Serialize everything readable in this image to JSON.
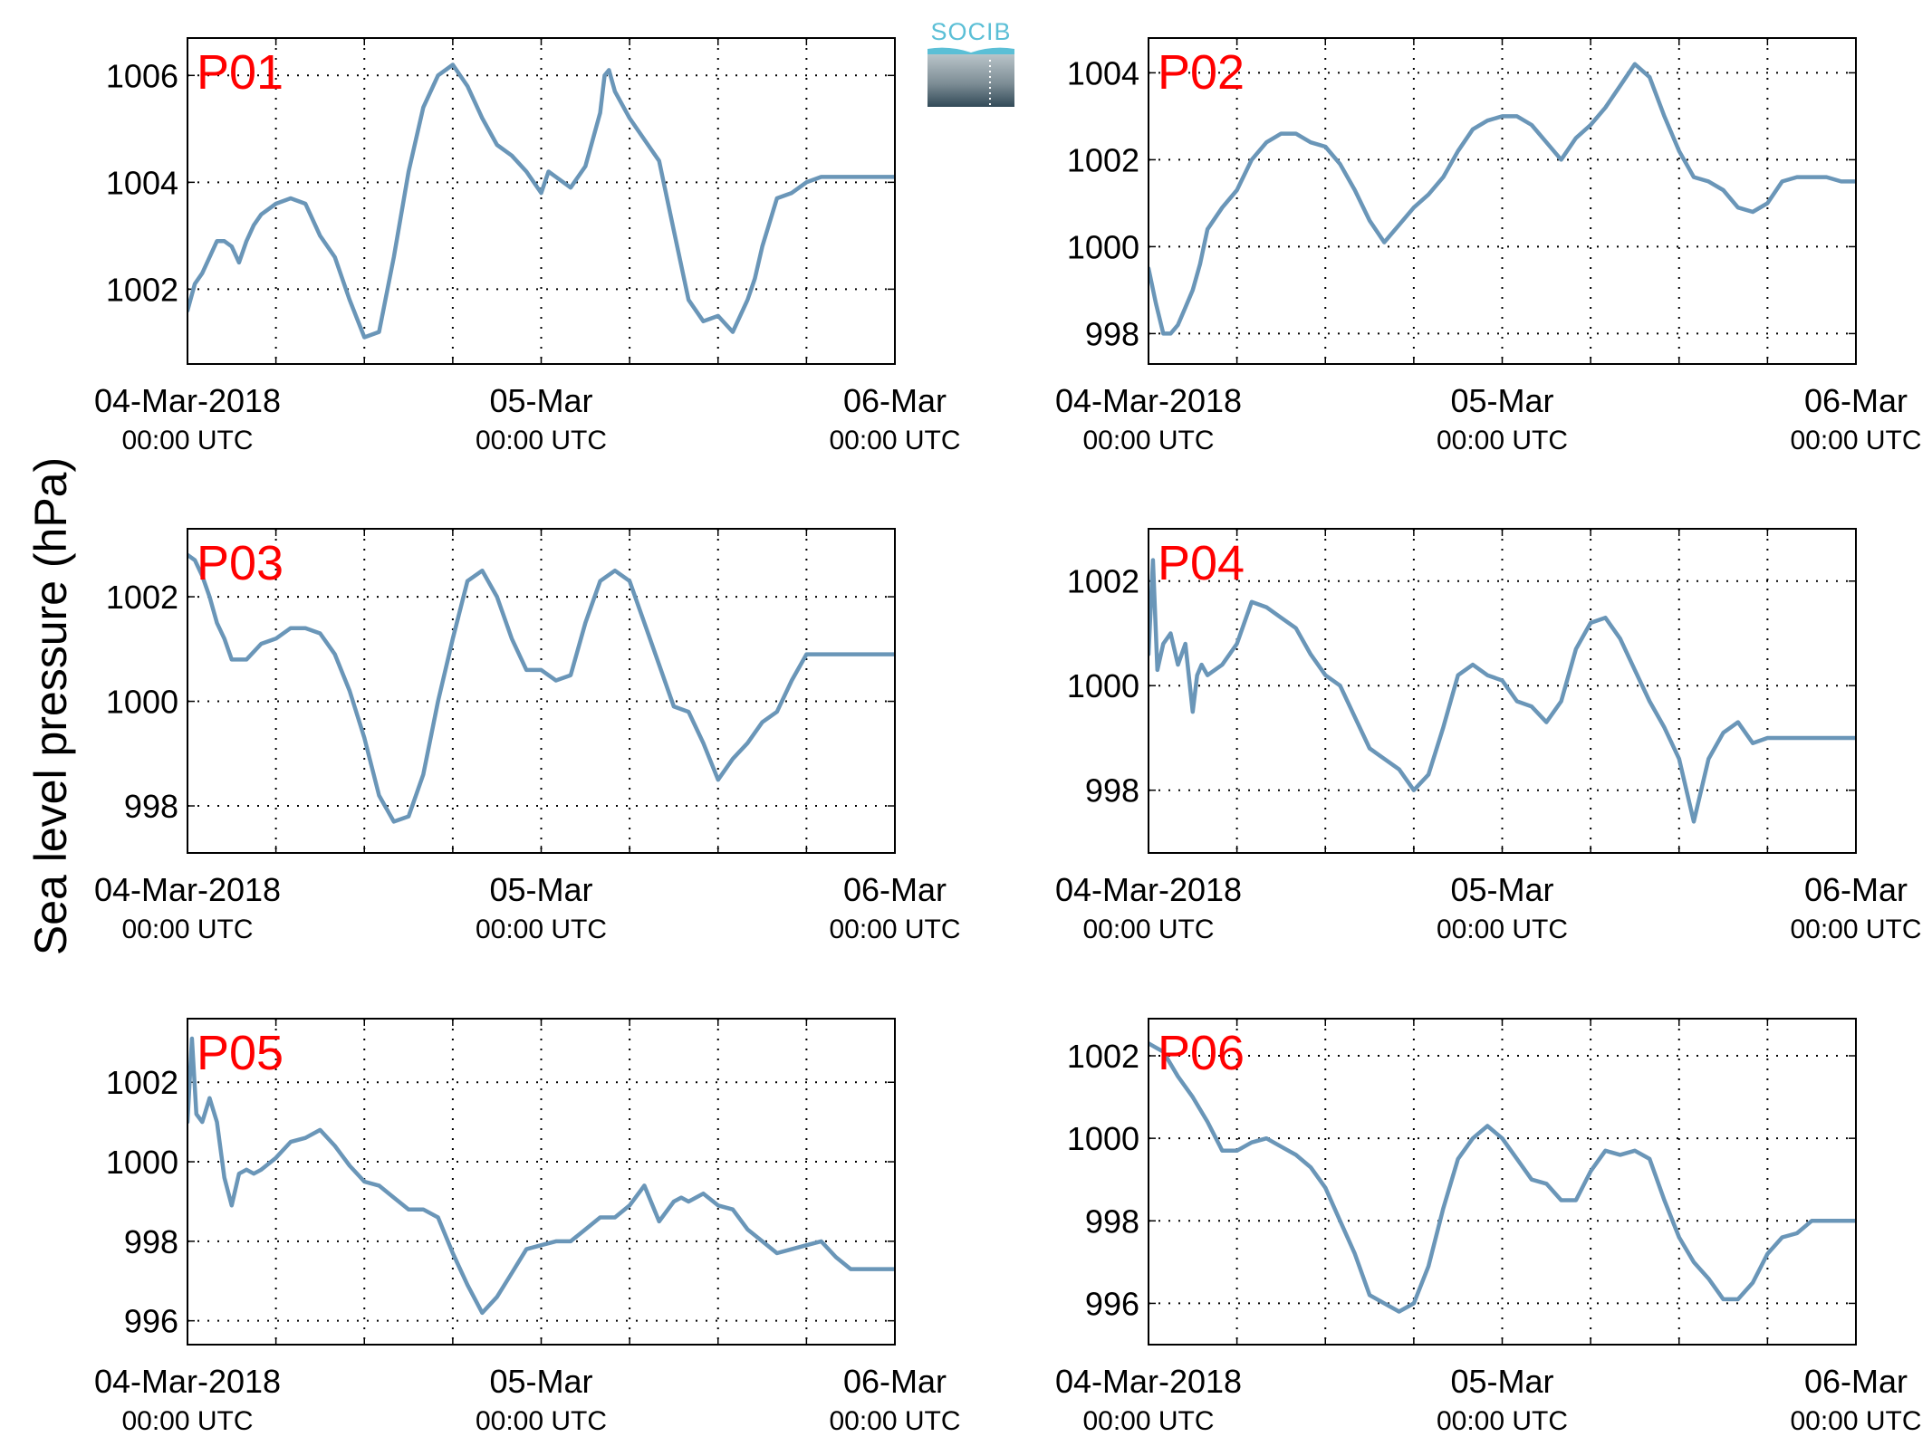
{
  "figure": {
    "ylabel": "Sea level pressure (hPa)",
    "logo_text": "SOCIB",
    "line_color": "#6a96b8",
    "label_color": "#ff0000"
  },
  "chart_data": [
    {
      "type": "line",
      "title": "P01",
      "xticks": [
        {
          "line1": "04-Mar-2018",
          "line2": "00:00 UTC"
        },
        {
          "line1": "05-Mar",
          "line2": "00:00 UTC"
        },
        {
          "line1": "06-Mar",
          "line2": "00:00 UTC"
        }
      ],
      "x_range_hours": [
        0,
        48
      ],
      "ylim": [
        1000.6,
        1006.7
      ],
      "yticks": [
        1002,
        1004,
        1006
      ],
      "x": [
        0,
        0.5,
        1,
        1.5,
        2,
        2.5,
        3,
        3.5,
        4,
        4.5,
        5,
        5.5,
        6,
        7,
        8,
        9,
        10,
        11,
        12,
        13,
        14,
        15,
        16,
        17,
        18,
        19,
        20,
        21,
        22,
        23,
        24,
        24.5,
        25,
        26,
        27,
        28,
        28.3,
        28.6,
        29,
        30,
        31,
        31.5,
        32,
        33,
        34,
        35,
        36,
        37,
        38,
        38.5,
        39,
        40,
        41,
        42,
        43,
        44,
        45,
        46,
        47,
        48
      ],
      "values": [
        1001.6,
        1002.1,
        1002.3,
        1002.6,
        1002.9,
        1002.9,
        1002.8,
        1002.5,
        1002.9,
        1003.2,
        1003.4,
        1003.5,
        1003.6,
        1003.7,
        1003.6,
        1003.0,
        1002.6,
        1001.8,
        1001.1,
        1001.2,
        1002.6,
        1004.2,
        1005.4,
        1006.0,
        1006.2,
        1005.8,
        1005.2,
        1004.7,
        1004.5,
        1004.2,
        1003.8,
        1004.2,
        1004.1,
        1003.9,
        1004.3,
        1005.3,
        1006.0,
        1006.1,
        1005.7,
        1005.2,
        1004.8,
        1004.6,
        1004.4,
        1003.1,
        1001.8,
        1001.4,
        1001.5,
        1001.2,
        1001.8,
        1002.2,
        1002.8,
        1003.7,
        1003.8,
        1004.0,
        1004.1,
        1004.1,
        1004.1,
        1004.1,
        1004.1,
        1004.1
      ]
    },
    {
      "type": "line",
      "title": "P02",
      "xticks": [
        {
          "line1": "04-Mar-2018",
          "line2": "00:00 UTC"
        },
        {
          "line1": "05-Mar",
          "line2": "00:00 UTC"
        },
        {
          "line1": "06-Mar",
          "line2": "00:00 UTC"
        }
      ],
      "x_range_hours": [
        0,
        48
      ],
      "ylim": [
        997.3,
        1004.8
      ],
      "yticks": [
        998,
        1000,
        1002,
        1004
      ],
      "x": [
        0,
        0.5,
        1,
        1.5,
        2,
        2.5,
        3,
        3.5,
        4,
        5,
        6,
        7,
        8,
        9,
        10,
        11,
        12,
        13,
        14,
        15,
        16,
        17,
        18,
        19,
        20,
        21,
        22,
        23,
        24,
        25,
        26,
        27,
        28,
        29,
        30,
        31,
        32,
        33,
        34,
        35,
        36,
        37,
        38,
        39,
        40,
        41,
        42,
        43,
        44,
        45,
        46,
        47,
        48
      ],
      "values": [
        999.5,
        998.7,
        998.0,
        998.0,
        998.2,
        998.6,
        999.0,
        999.6,
        1000.4,
        1000.9,
        1001.3,
        1002.0,
        1002.4,
        1002.6,
        1002.6,
        1002.4,
        1002.3,
        1001.9,
        1001.3,
        1000.6,
        1000.1,
        1000.5,
        1000.9,
        1001.2,
        1001.6,
        1002.2,
        1002.7,
        1002.9,
        1003.0,
        1003.0,
        1002.8,
        1002.4,
        1002.0,
        1002.5,
        1002.8,
        1003.2,
        1003.7,
        1004.2,
        1003.9,
        1003.0,
        1002.2,
        1001.6,
        1001.5,
        1001.3,
        1000.9,
        1000.8,
        1001.0,
        1001.5,
        1001.6,
        1001.6,
        1001.6,
        1001.5,
        1001.5
      ]
    },
    {
      "type": "line",
      "title": "P03",
      "xticks": [
        {
          "line1": "04-Mar-2018",
          "line2": "00:00 UTC"
        },
        {
          "line1": "05-Mar",
          "line2": "00:00 UTC"
        },
        {
          "line1": "06-Mar",
          "line2": "00:00 UTC"
        }
      ],
      "x_range_hours": [
        0,
        48
      ],
      "ylim": [
        997.1,
        1003.3
      ],
      "yticks": [
        998,
        1000,
        1002
      ],
      "x": [
        0,
        0.5,
        1,
        1.5,
        2,
        2.5,
        3,
        4,
        5,
        6,
        7,
        8,
        9,
        10,
        11,
        12,
        13,
        14,
        15,
        16,
        17,
        18,
        19,
        20,
        21,
        22,
        23,
        24,
        25,
        26,
        27,
        28,
        29,
        30,
        31,
        32,
        33,
        34,
        35,
        36,
        37,
        38,
        39,
        40,
        41,
        42,
        43,
        44,
        45,
        46,
        47,
        48
      ],
      "values": [
        1002.8,
        1002.7,
        1002.4,
        1002.0,
        1001.5,
        1001.2,
        1000.8,
        1000.8,
        1001.1,
        1001.2,
        1001.4,
        1001.4,
        1001.3,
        1000.9,
        1000.2,
        999.3,
        998.2,
        997.7,
        997.8,
        998.6,
        1000.0,
        1001.2,
        1002.3,
        1002.5,
        1002.0,
        1001.2,
        1000.6,
        1000.6,
        1000.4,
        1000.5,
        1001.5,
        1002.3,
        1002.5,
        1002.3,
        1001.5,
        1000.7,
        999.9,
        999.8,
        999.2,
        998.5,
        998.9,
        999.2,
        999.6,
        999.8,
        1000.4,
        1000.9,
        1000.9,
        1000.9,
        1000.9,
        1000.9,
        1000.9,
        1000.9
      ]
    },
    {
      "type": "line",
      "title": "P04",
      "xticks": [
        {
          "line1": "04-Mar-2018",
          "line2": "00:00 UTC"
        },
        {
          "line1": "05-Mar",
          "line2": "00:00 UTC"
        },
        {
          "line1": "06-Mar",
          "line2": "00:00 UTC"
        }
      ],
      "x_range_hours": [
        0,
        48
      ],
      "ylim": [
        996.8,
        1003.0
      ],
      "yticks": [
        998,
        1000,
        1002
      ],
      "x": [
        0,
        0.3,
        0.6,
        1,
        1.5,
        2,
        2.5,
        3,
        3.3,
        3.6,
        4,
        5,
        6,
        7,
        8,
        9,
        10,
        11,
        12,
        13,
        14,
        15,
        16,
        17,
        18,
        19,
        20,
        21,
        22,
        23,
        24,
        25,
        26,
        27,
        28,
        29,
        30,
        31,
        32,
        33,
        34,
        35,
        36,
        37,
        38,
        39,
        40,
        41,
        42,
        43,
        44,
        45,
        46,
        47,
        48
      ],
      "values": [
        1000.6,
        1002.4,
        1000.3,
        1000.8,
        1001.0,
        1000.4,
        1000.8,
        999.5,
        1000.2,
        1000.4,
        1000.2,
        1000.4,
        1000.8,
        1001.6,
        1001.5,
        1001.3,
        1001.1,
        1000.6,
        1000.2,
        1000.0,
        999.4,
        998.8,
        998.6,
        998.4,
        998.0,
        998.3,
        999.2,
        1000.2,
        1000.4,
        1000.2,
        1000.1,
        999.7,
        999.6,
        999.3,
        999.7,
        1000.7,
        1001.2,
        1001.3,
        1000.9,
        1000.3,
        999.7,
        999.2,
        998.6,
        997.4,
        998.6,
        999.1,
        999.3,
        998.9,
        999.0,
        999.0,
        999.0,
        999.0,
        999.0,
        999.0,
        999.0
      ]
    },
    {
      "type": "line",
      "title": "P05",
      "xticks": [
        {
          "line1": "04-Mar-2018",
          "line2": "00:00 UTC"
        },
        {
          "line1": "05-Mar",
          "line2": "00:00 UTC"
        },
        {
          "line1": "06-Mar",
          "line2": "00:00 UTC"
        }
      ],
      "x_range_hours": [
        0,
        48
      ],
      "ylim": [
        995.4,
        1003.6
      ],
      "yticks": [
        996,
        998,
        1000,
        1002
      ],
      "x": [
        0,
        0.3,
        0.6,
        1,
        1.5,
        2,
        2.5,
        3,
        3.5,
        4,
        4.5,
        5,
        6,
        7,
        8,
        9,
        10,
        11,
        12,
        13,
        14,
        15,
        16,
        17,
        18,
        19,
        20,
        21,
        22,
        23,
        24,
        25,
        26,
        27,
        28,
        29,
        30,
        31,
        32,
        33,
        33.5,
        34,
        34.5,
        35,
        36,
        37,
        38,
        39,
        40,
        41,
        42,
        43,
        44,
        45,
        46,
        47,
        48
      ],
      "values": [
        1001.0,
        1003.1,
        1001.2,
        1001.0,
        1001.6,
        1001.0,
        999.6,
        998.9,
        999.7,
        999.8,
        999.7,
        999.8,
        1000.1,
        1000.5,
        1000.6,
        1000.8,
        1000.4,
        999.9,
        999.5,
        999.4,
        999.1,
        998.8,
        998.8,
        998.6,
        997.7,
        996.9,
        996.2,
        996.6,
        997.2,
        997.8,
        997.9,
        998.0,
        998.0,
        998.3,
        998.6,
        998.6,
        998.9,
        999.4,
        998.5,
        999.0,
        999.1,
        999.0,
        999.1,
        999.2,
        998.9,
        998.8,
        998.3,
        998.0,
        997.7,
        997.8,
        997.9,
        998.0,
        997.6,
        997.3,
        997.3,
        997.3,
        997.3
      ]
    },
    {
      "type": "line",
      "title": "P06",
      "xticks": [
        {
          "line1": "04-Mar-2018",
          "line2": "00:00 UTC"
        },
        {
          "line1": "05-Mar",
          "line2": "00:00 UTC"
        },
        {
          "line1": "06-Mar",
          "line2": "00:00 UTC"
        }
      ],
      "x_range_hours": [
        0,
        48
      ],
      "ylim": [
        995.0,
        1002.9
      ],
      "yticks": [
        996,
        998,
        1000,
        1002
      ],
      "x": [
        0,
        0.5,
        1,
        2,
        3,
        4,
        5,
        6,
        7,
        8,
        9,
        10,
        11,
        12,
        13,
        14,
        15,
        16,
        17,
        18,
        19,
        20,
        21,
        22,
        23,
        24,
        25,
        26,
        27,
        28,
        29,
        30,
        31,
        32,
        33,
        34,
        35,
        36,
        37,
        38,
        39,
        40,
        41,
        42,
        43,
        44,
        45,
        46,
        47,
        48
      ],
      "values": [
        1002.3,
        1002.2,
        1002.1,
        1001.5,
        1001.0,
        1000.4,
        999.7,
        999.7,
        999.9,
        1000.0,
        999.8,
        999.6,
        999.3,
        998.8,
        998.0,
        997.2,
        996.2,
        996.0,
        995.8,
        996.0,
        996.9,
        998.3,
        999.5,
        1000.0,
        1000.3,
        1000.0,
        999.5,
        999.0,
        998.9,
        998.5,
        998.5,
        999.2,
        999.7,
        999.6,
        999.7,
        999.5,
        998.5,
        997.6,
        997.0,
        996.6,
        996.1,
        996.1,
        996.5,
        997.2,
        997.6,
        997.7,
        998.0,
        998.0,
        998.0,
        998.0
      ]
    }
  ]
}
